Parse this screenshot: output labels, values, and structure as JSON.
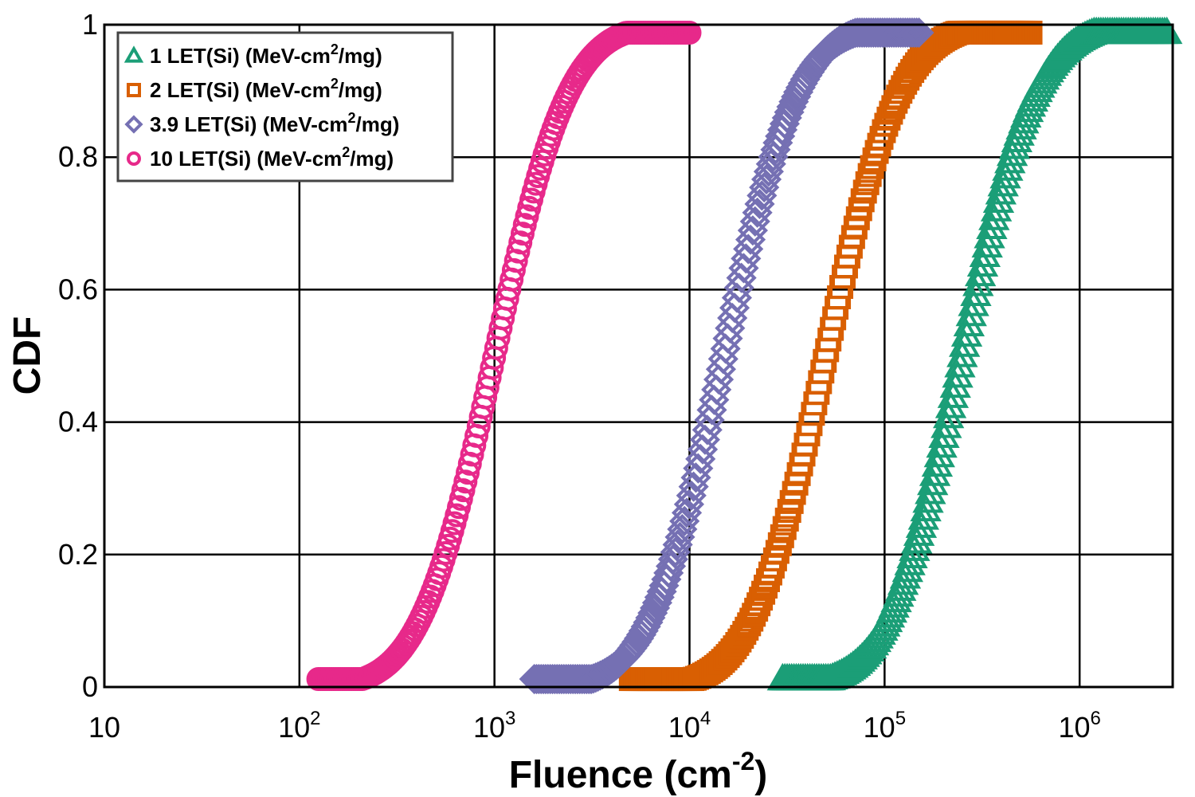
{
  "chart_data": {
    "type": "scatter",
    "xscale": "log",
    "xlim": [
      10,
      3000000
    ],
    "ylim": [
      0,
      1
    ],
    "grid": true,
    "legend_position": "top-left",
    "xlabel": {
      "main": "Fluence (cm",
      "sup": "-2",
      "close": ")"
    },
    "ylabel": "CDF",
    "xticks": [
      {
        "value": 10,
        "base": "10",
        "exp": ""
      },
      {
        "value": 100,
        "base": "10",
        "exp": "2"
      },
      {
        "value": 1000,
        "base": "10",
        "exp": "3"
      },
      {
        "value": 10000,
        "base": "10",
        "exp": "4"
      },
      {
        "value": 100000,
        "base": "10",
        "exp": "5"
      },
      {
        "value": 1000000,
        "base": "10",
        "exp": "6"
      }
    ],
    "yticks": [
      {
        "value": 0,
        "label": "0"
      },
      {
        "value": 0.2,
        "label": "0.2"
      },
      {
        "value": 0.4,
        "label": "0.4"
      },
      {
        "value": 0.6,
        "label": "0.6"
      },
      {
        "value": 0.8,
        "label": "0.8"
      },
      {
        "value": 1,
        "label": "1"
      }
    ],
    "series": [
      {
        "name": "1 LET(Si) (MeV-cm2/mg)",
        "label_parts": {
          "pre": "1 LET(Si) (MeV-cm",
          "sup": "2",
          "post": "/mg)"
        },
        "marker": "triangle",
        "color": "#1b9e77",
        "median_fluence": 250000,
        "log_sigma": 0.3,
        "x_range": [
          30000,
          2800000
        ]
      },
      {
        "name": "2 LET(Si) (MeV-cm2/mg)",
        "label_parts": {
          "pre": "2 LET(Si) (MeV-cm",
          "sup": "2",
          "post": "/mg)"
        },
        "marker": "square",
        "color": "#d95f02",
        "median_fluence": 50000,
        "log_sigma": 0.3,
        "x_range": [
          5000,
          560000
        ]
      },
      {
        "name": "3.9 LET(Si) (MeV-cm2/mg)",
        "label_parts": {
          "pre": "3.9 LET(Si) (MeV-cm",
          "sup": "2",
          "post": "/mg)"
        },
        "marker": "diamond",
        "color": "#7570b3",
        "median_fluence": 15000,
        "log_sigma": 0.3,
        "x_range": [
          1600,
          150000
        ]
      },
      {
        "name": "10 LET(Si) (MeV-cm2/mg)",
        "label_parts": {
          "pre": "10 LET(Si) (MeV-cm",
          "sup": "2",
          "post": "/mg)"
        },
        "marker": "circle",
        "color": "#e7298a",
        "median_fluence": 1000,
        "log_sigma": 0.3,
        "x_range": [
          125,
          10000
        ]
      }
    ]
  }
}
